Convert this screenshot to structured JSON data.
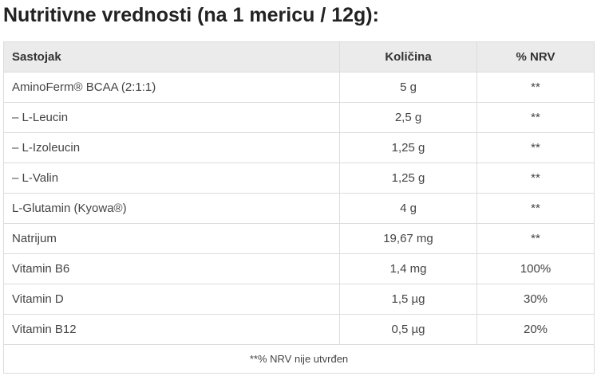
{
  "title": "Nutritivne vrednosti (na 1 mericu / 12g):",
  "table": {
    "headers": [
      "Sastojak",
      "Količina",
      "% NRV"
    ],
    "rows": [
      [
        "AminoFerm® BCAA (2:1:1)",
        "5 g",
        "**"
      ],
      [
        "– L-Leucin",
        "2,5 g",
        "**"
      ],
      [
        "– L-Izoleucin",
        "1,25 g",
        "**"
      ],
      [
        "– L-Valin",
        "1,25 g",
        "**"
      ],
      [
        "L-Glutamin (Kyowa®)",
        "4 g",
        "**"
      ],
      [
        "Natrijum",
        "19,67 mg",
        "**"
      ],
      [
        "Vitamin B6",
        "1,4 mg",
        "100%"
      ],
      [
        "Vitamin D",
        "1,5 µg",
        "30%"
      ],
      [
        "Vitamin B12",
        "0,5 µg",
        "20%"
      ]
    ],
    "footnote": "**% NRV nije utvrđen"
  }
}
